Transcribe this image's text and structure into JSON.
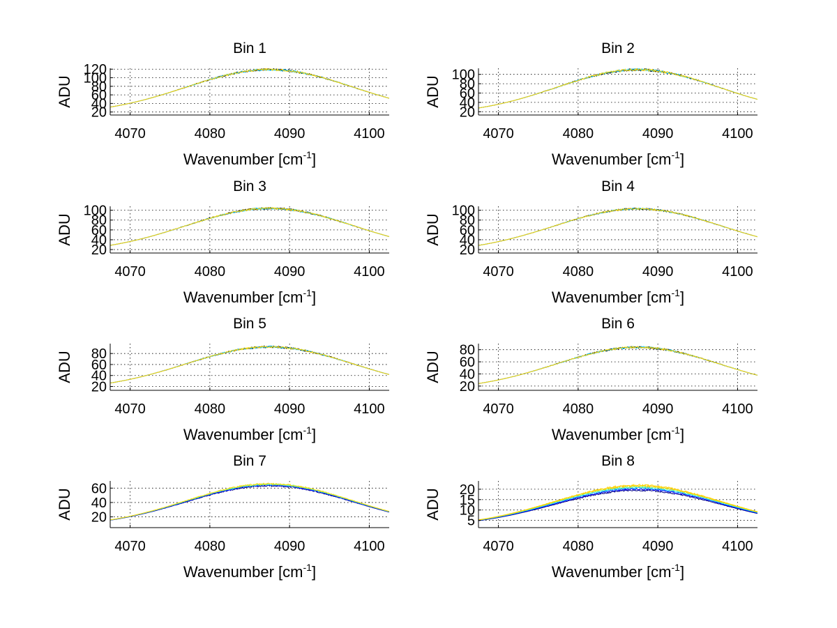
{
  "figure": {
    "background": "#ffffff",
    "series_colors": [
      "#00007f",
      "#0000ff",
      "#00bfff",
      "#7fff7f",
      "#ffbf00",
      "#ffd700"
    ]
  },
  "chart_data": [
    {
      "type": "line",
      "title": "Bin 1",
      "xlabel": "Wavenumber [cm-1]",
      "ylabel": "ADU",
      "xlim": [
        4067.5,
        4102.5
      ],
      "ylim": [
        13,
        122
      ],
      "xticks": [
        4070,
        4080,
        4090,
        4100
      ],
      "yticks": [
        20,
        40,
        60,
        80,
        100,
        120
      ],
      "grid": true,
      "profile": {
        "base": 14.5,
        "peak": 119.0,
        "center": 4087.5,
        "width": 10.5,
        "noise": 0.03
      },
      "series": [
        {
          "color": "#000000",
          "scale": 1.0
        },
        {
          "color": "#00bfff",
          "scale": 1.0
        },
        {
          "color": "#ffd700",
          "scale": 1.0
        }
      ]
    },
    {
      "type": "line",
      "title": "Bin 2",
      "xlabel": "Wavenumber [cm-1]",
      "ylabel": "ADU",
      "xlim": [
        4067.5,
        4102.5
      ],
      "ylim": [
        13,
        113
      ],
      "xticks": [
        4070,
        4080,
        4090,
        4100
      ],
      "yticks": [
        20,
        40,
        60,
        80,
        100
      ],
      "grid": true,
      "profile": {
        "base": 14.0,
        "peak": 110.0,
        "center": 4087.5,
        "width": 10.2,
        "noise": 0.035
      },
      "series": [
        {
          "color": "#000000",
          "scale": 1.0
        },
        {
          "color": "#00bfff",
          "scale": 1.0
        },
        {
          "color": "#ffd700",
          "scale": 1.0
        }
      ]
    },
    {
      "type": "line",
      "title": "Bin 3",
      "xlabel": "Wavenumber [cm-1]",
      "ylabel": "ADU",
      "xlim": [
        4067.5,
        4102.5
      ],
      "ylim": [
        13,
        108
      ],
      "xticks": [
        4070,
        4080,
        4090,
        4100
      ],
      "yticks": [
        20,
        40,
        60,
        80,
        100
      ],
      "grid": true,
      "profile": {
        "base": 14.0,
        "peak": 104.0,
        "center": 4087.5,
        "width": 10.5,
        "noise": 0.03
      },
      "series": [
        {
          "color": "#000000",
          "scale": 1.0
        },
        {
          "color": "#00bfff",
          "scale": 1.0
        },
        {
          "color": "#ffd700",
          "scale": 1.0
        }
      ]
    },
    {
      "type": "line",
      "title": "Bin 4",
      "xlabel": "Wavenumber [cm-1]",
      "ylabel": "ADU",
      "xlim": [
        4067.5,
        4102.5
      ],
      "ylim": [
        13,
        108
      ],
      "xticks": [
        4070,
        4080,
        4090,
        4100
      ],
      "yticks": [
        20,
        40,
        60,
        80,
        100
      ],
      "grid": true,
      "profile": {
        "base": 14.0,
        "peak": 103.0,
        "center": 4087.5,
        "width": 10.5,
        "noise": 0.025
      },
      "series": [
        {
          "color": "#000000",
          "scale": 1.0
        },
        {
          "color": "#00bfff",
          "scale": 1.0
        },
        {
          "color": "#ffd700",
          "scale": 1.0
        }
      ]
    },
    {
      "type": "line",
      "title": "Bin 5",
      "xlabel": "Wavenumber [cm-1]",
      "ylabel": "ADU",
      "xlim": [
        4067.5,
        4102.5
      ],
      "ylim": [
        13,
        98
      ],
      "xticks": [
        4070,
        4080,
        4090,
        4100
      ],
      "yticks": [
        20,
        40,
        60,
        80
      ],
      "grid": true,
      "profile": {
        "base": 13.5,
        "peak": 92.0,
        "center": 4087.5,
        "width": 10.5,
        "noise": 0.03
      },
      "series": [
        {
          "color": "#000000",
          "scale": 1.0
        },
        {
          "color": "#00bfff",
          "scale": 1.0
        },
        {
          "color": "#ffd700",
          "scale": 1.0
        }
      ]
    },
    {
      "type": "line",
      "title": "Bin 6",
      "xlabel": "Wavenumber [cm-1]",
      "ylabel": "ADU",
      "xlim": [
        4067.5,
        4102.5
      ],
      "ylim": [
        13,
        90
      ],
      "xticks": [
        4070,
        4080,
        4090,
        4100
      ],
      "yticks": [
        20,
        40,
        60,
        80
      ],
      "grid": true,
      "profile": {
        "base": 13.5,
        "peak": 84.0,
        "center": 4087.5,
        "width": 10.3,
        "noise": 0.03
      },
      "series": [
        {
          "color": "#000000",
          "scale": 1.0
        },
        {
          "color": "#00bfff",
          "scale": 1.0
        },
        {
          "color": "#ffd700",
          "scale": 1.0
        }
      ]
    },
    {
      "type": "line",
      "title": "Bin 7",
      "xlabel": "Wavenumber [cm-1]",
      "ylabel": "ADU",
      "xlim": [
        4067.5,
        4102.5
      ],
      "ylim": [
        5,
        70
      ],
      "xticks": [
        4070,
        4080,
        4090,
        4100
      ],
      "yticks": [
        20,
        40,
        60
      ],
      "grid": true,
      "profile": {
        "base": 6.0,
        "peak": 65.0,
        "center": 4087.5,
        "width": 10.5,
        "noise": 0.025
      },
      "series": [
        {
          "color": "#00007f",
          "scale": 0.97
        },
        {
          "color": "#0000ff",
          "scale": 0.985
        },
        {
          "color": "#00bfff",
          "scale": 1.0
        },
        {
          "color": "#7fff7f",
          "scale": 1.01
        },
        {
          "color": "#ffd700",
          "scale": 1.02
        }
      ]
    },
    {
      "type": "line",
      "title": "Bin 8",
      "xlabel": "Wavenumber [cm-1]",
      "ylabel": "ADU",
      "xlim": [
        4067.5,
        4102.5
      ],
      "ylim": [
        1.5,
        24
      ],
      "xticks": [
        4070,
        4080,
        4090,
        4100
      ],
      "yticks": [
        5,
        10,
        15,
        20
      ],
      "grid": true,
      "profile": {
        "base": 2.0,
        "peak": 21.0,
        "center": 4087.5,
        "width": 10.5,
        "noise": 0.03
      },
      "series": [
        {
          "color": "#00007f",
          "scale": 0.92
        },
        {
          "color": "#0000ff",
          "scale": 0.95
        },
        {
          "color": "#00bfff",
          "scale": 0.98
        },
        {
          "color": "#7fff7f",
          "scale": 1.01
        },
        {
          "color": "#ffbf00",
          "scale": 1.03
        },
        {
          "color": "#ffd700",
          "scale": 1.05
        }
      ]
    }
  ]
}
